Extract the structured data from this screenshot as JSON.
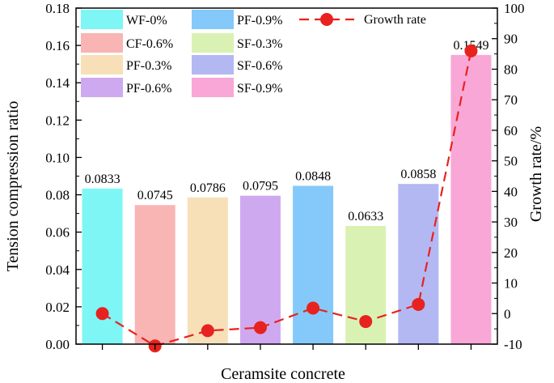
{
  "chart_data": {
    "type": "bar",
    "xlabel": "Ceramsite concrete",
    "ylabel": "Tension compression ratio",
    "y2label": "Growth rate/%",
    "ylim": [
      0,
      0.18
    ],
    "y2lim": [
      -10,
      100
    ],
    "y_ticks": [
      "0.00",
      "0.02",
      "0.04",
      "0.06",
      "0.08",
      "0.10",
      "0.12",
      "0.14",
      "0.16",
      "0.18"
    ],
    "y2_ticks": [
      "-10",
      "0",
      "10",
      "20",
      "30",
      "40",
      "50",
      "60",
      "70",
      "80",
      "90",
      "100"
    ],
    "categories": [
      "WF-0%",
      "CF-0.6%",
      "PF-0.3%",
      "PF-0.6%",
      "PF-0.9%",
      "SF-0.3%",
      "SF-0.6%",
      "SF-0.9%"
    ],
    "series": [
      {
        "name": "Tension compression ratio",
        "values": [
          0.0833,
          0.0745,
          0.0786,
          0.0795,
          0.0848,
          0.0633,
          0.0858,
          0.1549
        ],
        "labels": [
          "0.0833",
          "0.0745",
          "0.0786",
          "0.0795",
          "0.0848",
          "0.0633",
          "0.0858",
          "0.1549"
        ],
        "colors": [
          "#7ef6f6",
          "#f9b4b4",
          "#f7e0b8",
          "#cfa9f0",
          "#84c9f9",
          "#d9f2b3",
          "#b3b8f3",
          "#f9a7d6"
        ]
      },
      {
        "name": "Growth rate",
        "axis": "right",
        "values": [
          0,
          -10.6,
          -5.6,
          -4.6,
          1.8,
          -2.6,
          3,
          86
        ],
        "color": "#e8221e"
      }
    ],
    "legend": {
      "position": "top-left",
      "items": [
        {
          "label": "WF-0%",
          "color": "#7ef6f6"
        },
        {
          "label": "PF-0.9%",
          "color": "#84c9f9"
        },
        {
          "label": "Growth rate",
          "color": "#e8221e"
        },
        {
          "label": "CF-0.6%",
          "color": "#f9b4b4"
        },
        {
          "label": "SF-0.3%",
          "color": "#d9f2b3"
        },
        {
          "label": "PF-0.3%",
          "color": "#f7e0b8"
        },
        {
          "label": "SF-0.6%",
          "color": "#b3b8f3"
        },
        {
          "label": "PF-0.6%",
          "color": "#cfa9f0"
        },
        {
          "label": "SF-0.9%",
          "color": "#f9a7d6"
        }
      ]
    }
  }
}
